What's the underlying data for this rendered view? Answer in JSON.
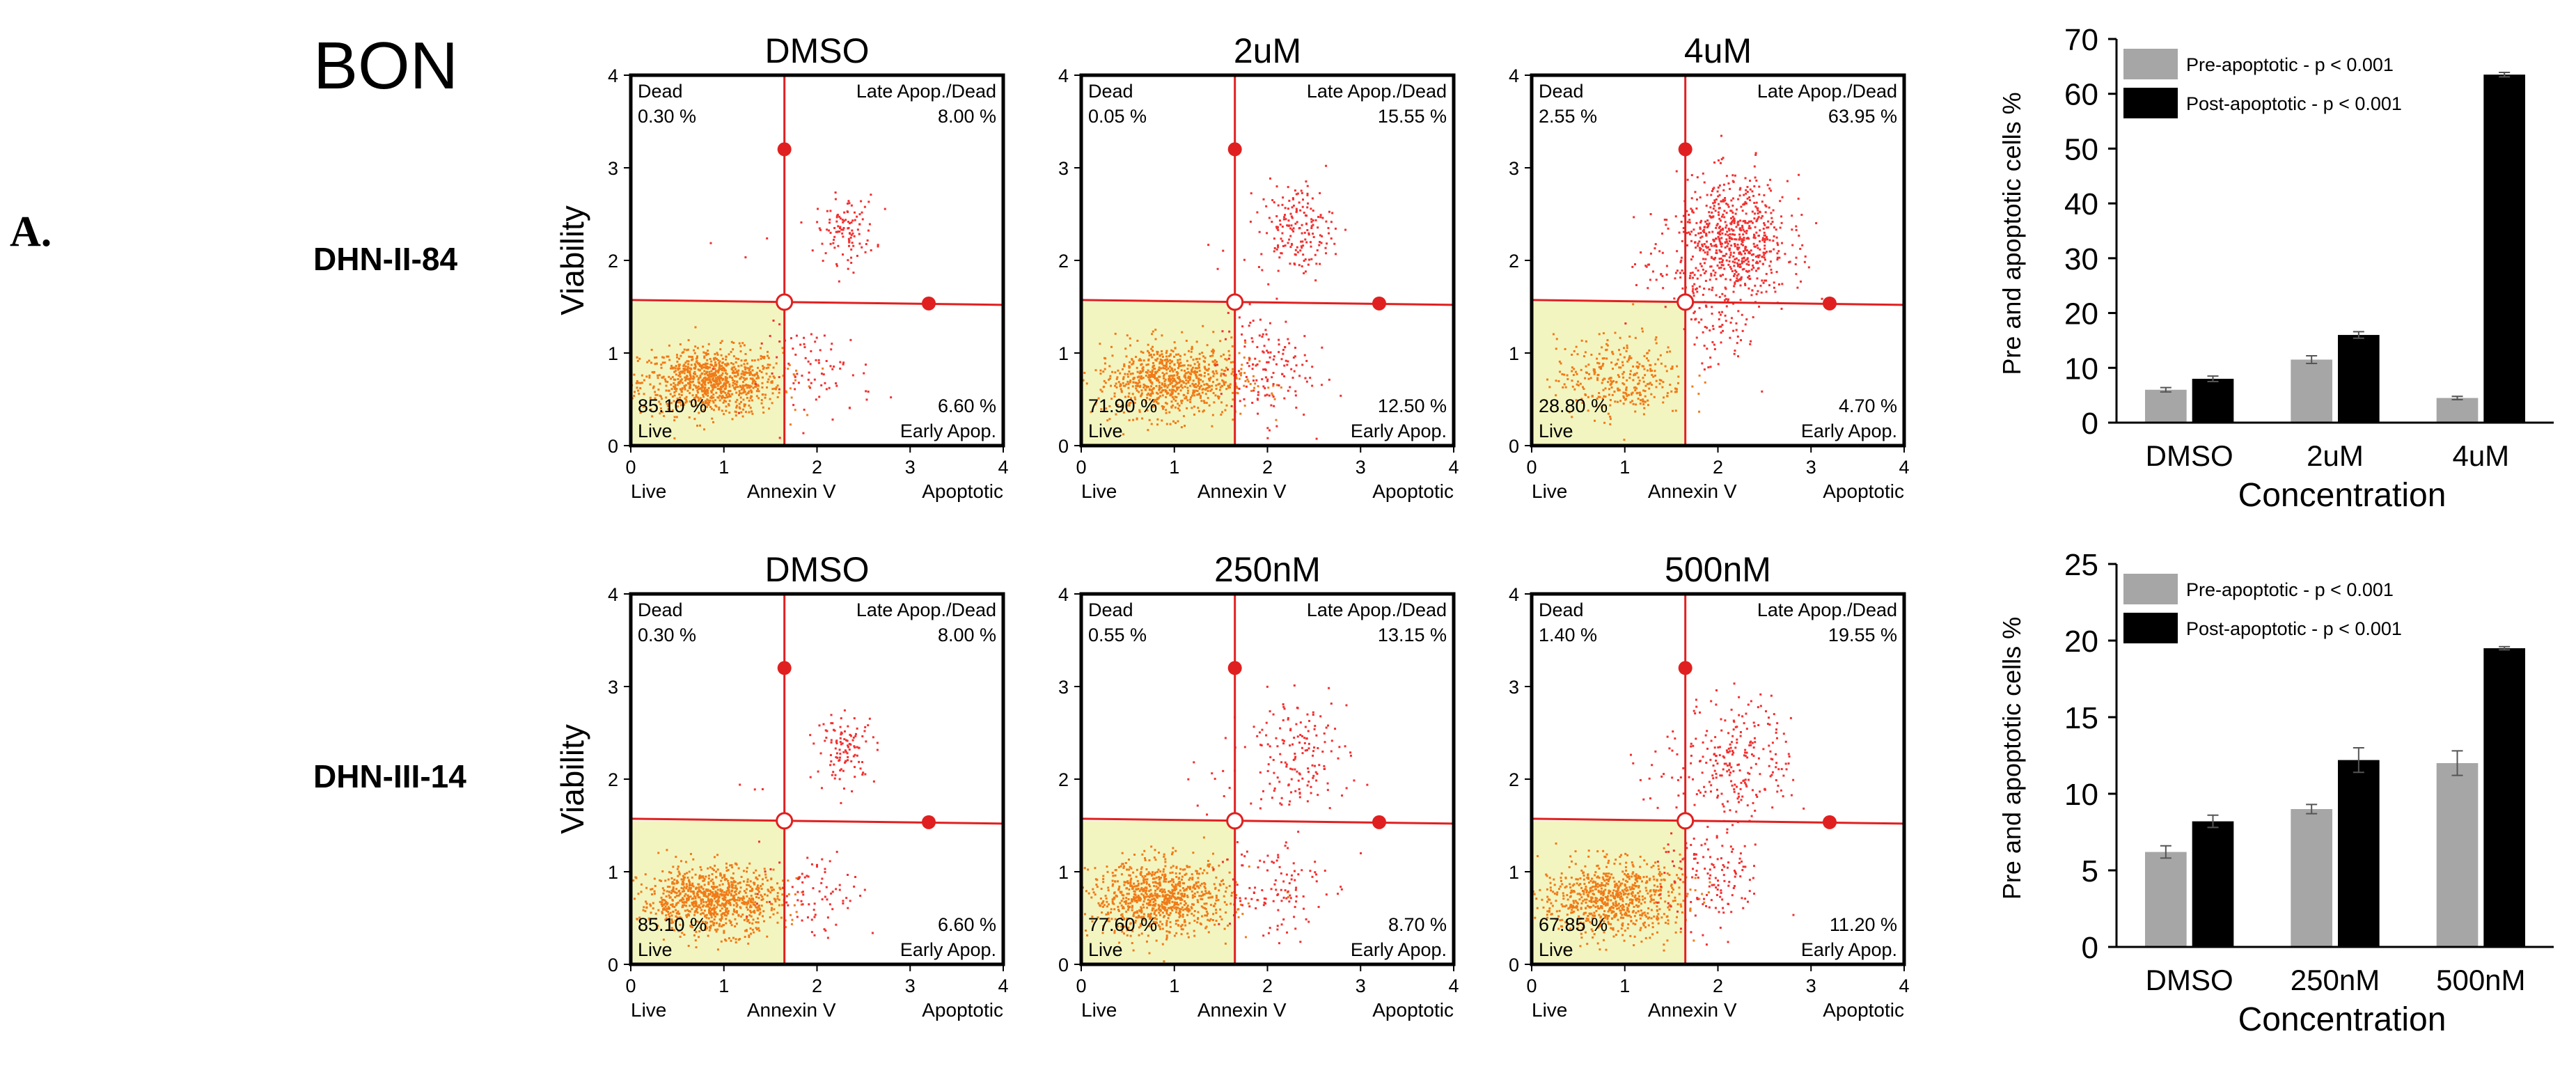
{
  "figure_label": "A.",
  "cell_line": "BON",
  "rows": [
    {
      "label": "DHN-II-84"
    },
    {
      "label": "DHN-III-14"
    }
  ],
  "chart_data": [
    {
      "type": "scatter",
      "row": 0,
      "title": "DMSO",
      "ylabel": "Viability",
      "xlabel_left": "Live",
      "xlabel_center": "Annexin V",
      "xlabel_right": "Apoptotic",
      "xlim": [
        0,
        4
      ],
      "ylim": [
        0,
        4
      ],
      "xticks": [
        "0",
        "1",
        "2",
        "3",
        "4"
      ],
      "yticks": [
        "0",
        "1",
        "2",
        "3",
        "4"
      ],
      "quadrants": {
        "dead": {
          "label": "Dead",
          "value": "0.30 %"
        },
        "late": {
          "label": "Late Apop./Dead",
          "value": "8.00 %"
        },
        "live": {
          "label": "Live",
          "value": "85.10 %"
        },
        "early": {
          "label": "Early Apop.",
          "value": "6.60 %"
        }
      },
      "gate": {
        "x": 1.65,
        "y": 1.55
      },
      "populations": [
        {
          "name": "live",
          "cx": 0.85,
          "cy": 0.7,
          "sx": 0.38,
          "sy": 0.18,
          "n": 900
        },
        {
          "name": "late",
          "cx": 2.3,
          "cy": 2.35,
          "sx": 0.16,
          "sy": 0.18,
          "n": 110
        },
        {
          "name": "early",
          "cx": 2.0,
          "cy": 0.8,
          "sx": 0.3,
          "sy": 0.25,
          "n": 80
        },
        {
          "name": "dead",
          "cx": 1.2,
          "cy": 2.0,
          "sx": 0.2,
          "sy": 0.2,
          "n": 3
        }
      ]
    },
    {
      "type": "scatter",
      "row": 0,
      "title": "2uM",
      "ylabel": "",
      "xlabel_left": "Live",
      "xlabel_center": "Annexin V",
      "xlabel_right": "Apoptotic",
      "xlim": [
        0,
        4
      ],
      "ylim": [
        0,
        4
      ],
      "xticks": [
        "0",
        "1",
        "2",
        "3",
        "4"
      ],
      "yticks": [
        "0",
        "1",
        "2",
        "3",
        "4"
      ],
      "quadrants": {
        "dead": {
          "label": "Dead",
          "value": "0.05 %"
        },
        "late": {
          "label": "Late Apop./Dead",
          "value": "15.55 %"
        },
        "live": {
          "label": "Live",
          "value": "71.90 %"
        },
        "early": {
          "label": "Early Apop.",
          "value": "12.50 %"
        }
      },
      "gate": {
        "x": 1.65,
        "y": 1.55
      },
      "populations": [
        {
          "name": "live",
          "cx": 0.95,
          "cy": 0.72,
          "sx": 0.4,
          "sy": 0.2,
          "n": 800
        },
        {
          "name": "late",
          "cx": 2.3,
          "cy": 2.35,
          "sx": 0.2,
          "sy": 0.25,
          "n": 180
        },
        {
          "name": "early",
          "cx": 1.95,
          "cy": 0.85,
          "sx": 0.25,
          "sy": 0.3,
          "n": 140
        },
        {
          "name": "dead",
          "cx": 1.3,
          "cy": 2.0,
          "sx": 0.2,
          "sy": 0.2,
          "n": 2
        }
      ]
    },
    {
      "type": "scatter",
      "row": 0,
      "title": "4uM",
      "ylabel": "",
      "xlabel_left": "Live",
      "xlabel_center": "Annexin V",
      "xlabel_right": "Apoptotic",
      "xlim": [
        0,
        4
      ],
      "ylim": [
        0,
        4
      ],
      "xticks": [
        "0",
        "1",
        "2",
        "3",
        "4"
      ],
      "yticks": [
        "0",
        "1",
        "2",
        "3",
        "4"
      ],
      "quadrants": {
        "dead": {
          "label": "Dead",
          "value": "2.55 %"
        },
        "late": {
          "label": "Late Apop./Dead",
          "value": "63.95 %"
        },
        "live": {
          "label": "Live",
          "value": "28.80 %"
        },
        "early": {
          "label": "Early Apop.",
          "value": "4.70 %"
        }
      },
      "gate": {
        "x": 1.65,
        "y": 1.55
      },
      "populations": [
        {
          "name": "live",
          "cx": 0.95,
          "cy": 0.75,
          "sx": 0.35,
          "sy": 0.22,
          "n": 320
        },
        {
          "name": "late",
          "cx": 2.15,
          "cy": 2.2,
          "sx": 0.3,
          "sy": 0.35,
          "n": 700
        },
        {
          "name": "early",
          "cx": 1.95,
          "cy": 1.2,
          "sx": 0.2,
          "sy": 0.2,
          "n": 50
        },
        {
          "name": "dead",
          "cx": 1.4,
          "cy": 2.0,
          "sx": 0.18,
          "sy": 0.25,
          "n": 30
        }
      ]
    },
    {
      "type": "scatter",
      "row": 1,
      "title": "DMSO",
      "ylabel": "Viability",
      "xlabel_left": "Live",
      "xlabel_center": "Annexin V",
      "xlabel_right": "Apoptotic",
      "xlim": [
        0,
        4
      ],
      "ylim": [
        0,
        4
      ],
      "xticks": [
        "0",
        "1",
        "2",
        "3",
        "4"
      ],
      "yticks": [
        "0",
        "1",
        "2",
        "3",
        "4"
      ],
      "quadrants": {
        "dead": {
          "label": "Dead",
          "value": "0.30 %"
        },
        "late": {
          "label": "Late Apop./Dead",
          "value": "8.00 %"
        },
        "live": {
          "label": "Live",
          "value": "85.10 %"
        },
        "early": {
          "label": "Early Apop.",
          "value": "6.60 %"
        }
      },
      "gate": {
        "x": 1.65,
        "y": 1.55
      },
      "populations": [
        {
          "name": "live",
          "cx": 0.85,
          "cy": 0.7,
          "sx": 0.38,
          "sy": 0.18,
          "n": 900
        },
        {
          "name": "late",
          "cx": 2.3,
          "cy": 2.35,
          "sx": 0.16,
          "sy": 0.18,
          "n": 110
        },
        {
          "name": "early",
          "cx": 2.0,
          "cy": 0.8,
          "sx": 0.3,
          "sy": 0.25,
          "n": 80
        },
        {
          "name": "dead",
          "cx": 1.2,
          "cy": 2.0,
          "sx": 0.2,
          "sy": 0.2,
          "n": 3
        }
      ]
    },
    {
      "type": "scatter",
      "row": 1,
      "title": "250nM",
      "ylabel": "",
      "xlabel_left": "Live",
      "xlabel_center": "Annexin V",
      "xlabel_right": "Apoptotic",
      "xlim": [
        0,
        4
      ],
      "ylim": [
        0,
        4
      ],
      "xticks": [
        "0",
        "1",
        "2",
        "3",
        "4"
      ],
      "yticks": [
        "0",
        "1",
        "2",
        "3",
        "4"
      ],
      "quadrants": {
        "dead": {
          "label": "Dead",
          "value": "0.55 %"
        },
        "late": {
          "label": "Late Apop./Dead",
          "value": "13.15 %"
        },
        "live": {
          "label": "Live",
          "value": "77.60 %"
        },
        "early": {
          "label": "Early Apop.",
          "value": "8.70 %"
        }
      },
      "gate": {
        "x": 1.65,
        "y": 1.55
      },
      "populations": [
        {
          "name": "live",
          "cx": 0.85,
          "cy": 0.72,
          "sx": 0.38,
          "sy": 0.2,
          "n": 850
        },
        {
          "name": "late",
          "cx": 2.3,
          "cy": 2.3,
          "sx": 0.28,
          "sy": 0.3,
          "n": 160
        },
        {
          "name": "early",
          "cx": 2.0,
          "cy": 0.85,
          "sx": 0.3,
          "sy": 0.3,
          "n": 110
        },
        {
          "name": "dead",
          "cx": 1.3,
          "cy": 2.0,
          "sx": 0.2,
          "sy": 0.25,
          "n": 7
        }
      ]
    },
    {
      "type": "scatter",
      "row": 1,
      "title": "500nM",
      "ylabel": "",
      "xlabel_left": "Live",
      "xlabel_center": "Annexin V",
      "xlabel_right": "Apoptotic",
      "xlim": [
        0,
        4
      ],
      "ylim": [
        0,
        4
      ],
      "xticks": [
        "0",
        "1",
        "2",
        "3",
        "4"
      ],
      "yticks": [
        "0",
        "1",
        "2",
        "3",
        "4"
      ],
      "quadrants": {
        "dead": {
          "label": "Dead",
          "value": "1.40 %"
        },
        "late": {
          "label": "Late Apop./Dead",
          "value": "19.55 %"
        },
        "live": {
          "label": "Live",
          "value": "67.85 %"
        },
        "early": {
          "label": "Early Apop.",
          "value": "11.20 %"
        }
      },
      "gate": {
        "x": 1.65,
        "y": 1.55
      },
      "populations": [
        {
          "name": "live",
          "cx": 0.85,
          "cy": 0.72,
          "sx": 0.38,
          "sy": 0.2,
          "n": 780
        },
        {
          "name": "late",
          "cx": 2.2,
          "cy": 2.25,
          "sx": 0.3,
          "sy": 0.32,
          "n": 230
        },
        {
          "name": "early",
          "cx": 1.95,
          "cy": 0.95,
          "sx": 0.28,
          "sy": 0.3,
          "n": 140
        },
        {
          "name": "dead",
          "cx": 1.35,
          "cy": 2.0,
          "sx": 0.18,
          "sy": 0.25,
          "n": 16
        }
      ]
    },
    {
      "type": "bar",
      "row": 0,
      "title": "",
      "categories": [
        "DMSO",
        "2uM",
        "4uM"
      ],
      "series": [
        {
          "name": "Pre-apoptotic - p < 0.001",
          "color": "#a6a6a6",
          "values": [
            6.0,
            11.5,
            4.5
          ],
          "errors": [
            0.4,
            0.7,
            0.3
          ]
        },
        {
          "name": "Post-apoptotic - p < 0.001",
          "color": "#000000",
          "values": [
            8.0,
            16.0,
            63.5
          ],
          "errors": [
            0.5,
            0.6,
            0.4
          ]
        }
      ],
      "xlabel": "Concentration",
      "ylabel": "Pre and apoptotic cells %",
      "ylim": [
        0,
        70
      ],
      "yticks": [
        "0",
        "10",
        "20",
        "30",
        "40",
        "50",
        "60",
        "70"
      ]
    },
    {
      "type": "bar",
      "row": 1,
      "title": "",
      "categories": [
        "DMSO",
        "250nM",
        "500nM"
      ],
      "series": [
        {
          "name": "Pre-apoptotic - p < 0.001",
          "color": "#a6a6a6",
          "values": [
            6.2,
            9.0,
            12.0
          ],
          "errors": [
            0.4,
            0.3,
            0.8
          ]
        },
        {
          "name": "Post-apoptotic - p < 0.001",
          "color": "#000000",
          "values": [
            8.2,
            12.2,
            19.5
          ],
          "errors": [
            0.4,
            0.8,
            0.1
          ]
        }
      ],
      "xlabel": "Concentration",
      "ylabel": "Pre and apoptotic cells %",
      "ylim": [
        0,
        25
      ],
      "yticks": [
        "0",
        "5",
        "10",
        "15",
        "20",
        "25"
      ]
    }
  ]
}
